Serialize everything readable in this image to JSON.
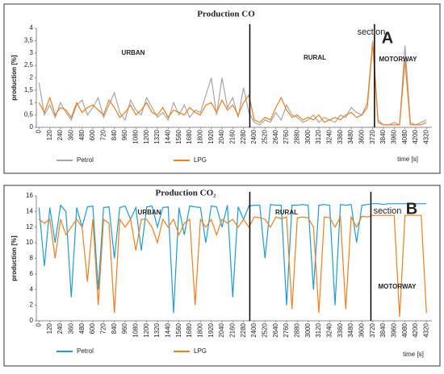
{
  "chart_data": [
    {
      "type": "line",
      "title": "Production CO",
      "ylabel": "production [%]",
      "xlabel": "time [s]",
      "section_label": "section",
      "panel_letter": "A",
      "regions": [
        "URBAN",
        "RURAL",
        "MOTORWAY"
      ],
      "section_lines": [
        2350,
        3740
      ],
      "xlim": [
        -30,
        4380
      ],
      "ylim": [
        0,
        4
      ],
      "yticks": [
        0,
        {
          "value": 0.5,
          "label": "0,5"
        },
        1,
        {
          "value": 1.5,
          "label": "1,5"
        },
        2,
        {
          "value": 2.5,
          "label": "2,5"
        },
        3,
        {
          "value": 3.5,
          "label": "3,5"
        },
        4
      ],
      "xticks": [
        0,
        120,
        240,
        360,
        480,
        600,
        720,
        840,
        960,
        1080,
        1200,
        1320,
        1440,
        1560,
        1680,
        1800,
        1920,
        2040,
        2160,
        2280,
        2400,
        2520,
        2640,
        2760,
        2880,
        3000,
        3120,
        3240,
        3360,
        3480,
        3600,
        3720,
        3840,
        3960,
        4080,
        4200,
        4320
      ],
      "x": [
        0,
        60,
        120,
        180,
        240,
        300,
        360,
        420,
        480,
        540,
        600,
        660,
        720,
        780,
        840,
        900,
        960,
        1020,
        1080,
        1140,
        1200,
        1260,
        1320,
        1380,
        1440,
        1500,
        1560,
        1620,
        1680,
        1740,
        1800,
        1860,
        1920,
        1980,
        2040,
        2100,
        2160,
        2220,
        2280,
        2340,
        2400,
        2460,
        2520,
        2580,
        2640,
        2700,
        2760,
        2820,
        2880,
        2940,
        3000,
        3060,
        3120,
        3180,
        3240,
        3300,
        3360,
        3420,
        3480,
        3540,
        3600,
        3660,
        3720,
        3780,
        3840,
        3900,
        3960,
        4020,
        4080,
        4140,
        4200,
        4260,
        4320
      ],
      "series": [
        {
          "name": "Petrol",
          "color": "#a6a6a6",
          "values": [
            1.8,
            0.5,
            0.9,
            0.4,
            1.0,
            0.6,
            0.3,
            0.9,
            1.1,
            0.5,
            0.8,
            1.2,
            0.4,
            0.9,
            1.4,
            0.6,
            0.3,
            1.1,
            0.7,
            0.5,
            1.2,
            0.8,
            0.4,
            0.6,
            0.3,
            1.0,
            0.5,
            0.9,
            0.4,
            0.7,
            0.6,
            1.3,
            2.0,
            0.5,
            2.0,
            0.8,
            1.2,
            0.4,
            1.6,
            0.6,
            0.2,
            0.1,
            0.3,
            0.2,
            0.6,
            0.3,
            0.9,
            0.5,
            0.4,
            0.2,
            0.3,
            0.5,
            0.2,
            0.4,
            0.3,
            0.2,
            0.5,
            0.4,
            0.8,
            0.6,
            0.5,
            1.0,
            3.5,
            0.3,
            0.1,
            0.1,
            0.2,
            0.1,
            3.3,
            0.2,
            0.1,
            0.2,
            0.3
          ]
        },
        {
          "name": "LPG",
          "color": "#f07f1e",
          "values": [
            1.0,
            0.6,
            1.2,
            0.5,
            0.8,
            0.7,
            0.4,
            1.0,
            0.6,
            0.8,
            0.9,
            0.7,
            0.5,
            1.1,
            0.8,
            0.4,
            0.6,
            0.9,
            0.5,
            0.7,
            1.0,
            0.6,
            0.5,
            0.8,
            0.4,
            0.7,
            0.6,
            0.5,
            0.8,
            0.6,
            0.5,
            0.9,
            1.0,
            0.6,
            1.1,
            0.7,
            0.9,
            0.5,
            1.0,
            1.3,
            0.3,
            0.2,
            0.4,
            0.3,
            0.8,
            1.2,
            0.7,
            0.4,
            0.5,
            0.3,
            0.4,
            0.3,
            0.5,
            0.2,
            0.3,
            0.4,
            0.3,
            0.5,
            0.6,
            0.4,
            0.5,
            0.8,
            3.4,
            0.2,
            0.1,
            0.1,
            0.1,
            0.1,
            2.7,
            0.1,
            0.1,
            0.1,
            0.2
          ]
        }
      ]
    },
    {
      "type": "line",
      "title": "Production CO₂",
      "ylabel": "production [%]",
      "xlabel": "time [s]",
      "section_label": "section",
      "panel_letter": "B",
      "regions": [
        "URBAN",
        "RURAL",
        "MOTORWAY"
      ],
      "section_lines": [
        2350,
        3700
      ],
      "xlim": [
        -30,
        4380
      ],
      "ylim": [
        0,
        16
      ],
      "yticks": [
        0,
        2,
        4,
        6,
        8,
        10,
        12,
        14,
        16
      ],
      "xticks": [
        0,
        120,
        240,
        360,
        480,
        600,
        720,
        840,
        960,
        1080,
        1200,
        1320,
        1440,
        1560,
        1680,
        1800,
        1920,
        2040,
        2160,
        2280,
        2400,
        2520,
        2640,
        2760,
        2880,
        3000,
        3120,
        3240,
        3360,
        3480,
        3600,
        3720,
        3840,
        3960,
        4080,
        4200,
        4320
      ],
      "x": [
        0,
        60,
        120,
        180,
        240,
        300,
        360,
        420,
        480,
        540,
        600,
        660,
        720,
        780,
        840,
        900,
        960,
        1020,
        1080,
        1140,
        1200,
        1260,
        1320,
        1380,
        1440,
        1500,
        1560,
        1620,
        1680,
        1740,
        1800,
        1860,
        1920,
        1980,
        2040,
        2100,
        2160,
        2220,
        2280,
        2340,
        2400,
        2460,
        2520,
        2580,
        2640,
        2700,
        2760,
        2820,
        2880,
        2940,
        3000,
        3060,
        3120,
        3180,
        3240,
        3300,
        3360,
        3420,
        3480,
        3540,
        3600,
        3660,
        3720,
        3780,
        3840,
        3900,
        3960,
        4020,
        4080,
        4140,
        4200,
        4260,
        4320
      ],
      "series": [
        {
          "name": "Petrol",
          "color": "#1f9ad6",
          "values": [
            14.5,
            7,
            14.5,
            10,
            14.8,
            14,
            3,
            14.5,
            12,
            14.6,
            14.7,
            4,
            14.5,
            14.6,
            8,
            14.5,
            14.7,
            13,
            14.5,
            9,
            14.6,
            14.7,
            12,
            14.5,
            14.6,
            1,
            14.5,
            11,
            14.7,
            14.6,
            14.5,
            10,
            14.7,
            14.6,
            12,
            14.8,
            3,
            14.6,
            13,
            14.7,
            14.8,
            14.8,
            8,
            14.9,
            14.8,
            14.8,
            2,
            14.8,
            14.8,
            14.9,
            14.8,
            4,
            14.8,
            14.9,
            14.8,
            2,
            14.9,
            14.8,
            14.9,
            10,
            14.8,
            14.9,
            15,
            15,
            14.9,
            15,
            15,
            15,
            15,
            15,
            15,
            15,
            15
          ]
        },
        {
          "name": "LPG",
          "color": "#f07f1e",
          "values": [
            13,
            12.5,
            13,
            8,
            13,
            11,
            12,
            13,
            12,
            5,
            13,
            2,
            13,
            12.5,
            1,
            13,
            12,
            13,
            9,
            13,
            13,
            12,
            10,
            13,
            12,
            13,
            11,
            12.5,
            13,
            2,
            13,
            12,
            13,
            11,
            13,
            12.5,
            13,
            12,
            13,
            12,
            13.3,
            13.2,
            13,
            12,
            13.3,
            13.1,
            13.3,
            1.5,
            13.2,
            13.3,
            13.2,
            12,
            1,
            13.3,
            13.2,
            12,
            13.3,
            1.5,
            13.3,
            12,
            13.4,
            13.3,
            13.5,
            13.5,
            13.5,
            13.5,
            13.5,
            0.5,
            13.5,
            13.5,
            13.5,
            13.5,
            1
          ]
        }
      ]
    }
  ]
}
